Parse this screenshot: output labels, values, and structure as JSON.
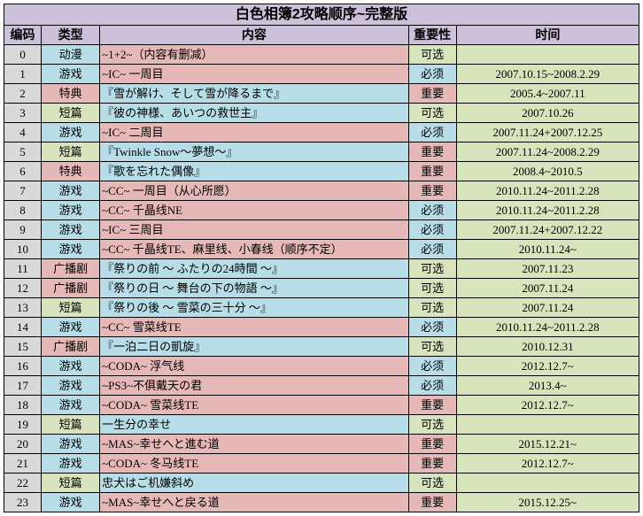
{
  "title": "白色相簿2攻略顺序~完整版",
  "headers": {
    "id": "编码",
    "type": "类型",
    "content": "内容",
    "imp": "重要性",
    "time": "时间"
  },
  "colors": {
    "header_bg": "#ccc0da",
    "id_bg": "#d9d9d9",
    "time_bg": "#d8e4bc",
    "blue": "#b7dee8",
    "pink": "#e6b8b7",
    "green": "#d8e4bc",
    "border": "#000000"
  },
  "columns": {
    "id_width": 42,
    "type_width": 66,
    "content_width": 348,
    "imp_width": 54,
    "time_width": 206
  },
  "font": {
    "title_size": 16,
    "header_size": 14,
    "cell_size": 13
  },
  "rows": [
    {
      "id": "0",
      "type": "动漫",
      "type_bg": "blue",
      "content": "~1+2~（内容有删减）",
      "content_bg": "pink",
      "imp": "可选",
      "imp_bg": "green",
      "time": ""
    },
    {
      "id": "1",
      "type": "游戏",
      "type_bg": "blue",
      "content": "~IC~ 一周目",
      "content_bg": "pink",
      "imp": "必须",
      "imp_bg": "blue",
      "time": "2007.10.15~2008.2.29"
    },
    {
      "id": "2",
      "type": "特典",
      "type_bg": "pink",
      "content": "『雪が解け、そして雪が降るまで』",
      "content_bg": "blue",
      "imp": "重要",
      "imp_bg": "pink",
      "time": "2005.4~2007.11"
    },
    {
      "id": "3",
      "type": "短篇",
      "type_bg": "green",
      "content": "『彼の神様、あいつの救世主』",
      "content_bg": "blue",
      "imp": "可选",
      "imp_bg": "green",
      "time": "2007.10.26"
    },
    {
      "id": "4",
      "type": "游戏",
      "type_bg": "blue",
      "content": "~IC~ 二周目",
      "content_bg": "pink",
      "imp": "必须",
      "imp_bg": "blue",
      "time": "2007.11.24+2007.12.25"
    },
    {
      "id": "5",
      "type": "短篇",
      "type_bg": "green",
      "content": "『Twinkle Snow～夢想～』",
      "content_bg": "blue",
      "imp": "重要",
      "imp_bg": "pink",
      "time": "2007.11.24~2008.2.29"
    },
    {
      "id": "6",
      "type": "特典",
      "type_bg": "pink",
      "content": "『歌を忘れた偶像』",
      "content_bg": "blue",
      "imp": "重要",
      "imp_bg": "pink",
      "time": "2008.4~2010.5"
    },
    {
      "id": "7",
      "type": "游戏",
      "type_bg": "blue",
      "content": "~CC~ 一周目（从心所愿）",
      "content_bg": "pink",
      "imp": "重要",
      "imp_bg": "pink",
      "time": "2010.11.24~2011.2.28"
    },
    {
      "id": "8",
      "type": "游戏",
      "type_bg": "blue",
      "content": "~CC~ 千晶线NE",
      "content_bg": "pink",
      "imp": "必须",
      "imp_bg": "blue",
      "time": "2010.11.24~2011.2.28"
    },
    {
      "id": "9",
      "type": "游戏",
      "type_bg": "blue",
      "content": "~IC~ 三周目",
      "content_bg": "pink",
      "imp": "必须",
      "imp_bg": "blue",
      "time": "2007.11.24+2007.12.22"
    },
    {
      "id": "10",
      "type": "游戏",
      "type_bg": "blue",
      "content": "~CC~ 千晶线TE、麻里线、小春线（顺序不定）",
      "content_bg": "pink",
      "imp": "必须",
      "imp_bg": "blue",
      "time": "2010.11.24~"
    },
    {
      "id": "11",
      "type": "广播剧",
      "type_bg": "pink",
      "content": "『祭りの前 ～ ふたりの24時間 ～』",
      "content_bg": "blue",
      "imp": "可选",
      "imp_bg": "green",
      "time": "2007.11.23"
    },
    {
      "id": "12",
      "type": "广播剧",
      "type_bg": "pink",
      "content": "『祭りの日 ～ 舞台の下の物語 ～』",
      "content_bg": "blue",
      "imp": "可选",
      "imp_bg": "green",
      "time": "2007.11.24"
    },
    {
      "id": "13",
      "type": "短篇",
      "type_bg": "green",
      "content": "『祭りの後 ～ 雪菜の三十分 ～』",
      "content_bg": "blue",
      "imp": "可选",
      "imp_bg": "green",
      "time": "2007.11.24"
    },
    {
      "id": "14",
      "type": "游戏",
      "type_bg": "blue",
      "content": "~CC~ 雪菜线TE",
      "content_bg": "pink",
      "imp": "必须",
      "imp_bg": "blue",
      "time": "2010.11.24~2011.2.28"
    },
    {
      "id": "15",
      "type": "广播剧",
      "type_bg": "pink",
      "content": "『一泊二日の凱旋』",
      "content_bg": "blue",
      "imp": "可选",
      "imp_bg": "green",
      "time": "2010.12.31"
    },
    {
      "id": "16",
      "type": "游戏",
      "type_bg": "blue",
      "content": "~CODA~ 浮气线",
      "content_bg": "pink",
      "imp": "必须",
      "imp_bg": "blue",
      "time": "2012.12.7~"
    },
    {
      "id": "17",
      "type": "游戏",
      "type_bg": "blue",
      "content": "~PS3~不俱戴天の君",
      "content_bg": "pink",
      "imp": "必须",
      "imp_bg": "blue",
      "time": "2013.4~"
    },
    {
      "id": "18",
      "type": "游戏",
      "type_bg": "blue",
      "content": "~CODA~ 雪菜线TE",
      "content_bg": "pink",
      "imp": "重要",
      "imp_bg": "pink",
      "time": "2012.12.7~"
    },
    {
      "id": "19",
      "type": "短篇",
      "type_bg": "green",
      "content": "一生分の幸せ",
      "content_bg": "blue",
      "imp": "可选",
      "imp_bg": "green",
      "time": ""
    },
    {
      "id": "20",
      "type": "游戏",
      "type_bg": "blue",
      "content": "~MAS~幸せへと進む道",
      "content_bg": "pink",
      "imp": "重要",
      "imp_bg": "pink",
      "time": "2015.12.21~"
    },
    {
      "id": "21",
      "type": "游戏",
      "type_bg": "blue",
      "content": "~CODA~ 冬马线TE",
      "content_bg": "pink",
      "imp": "重要",
      "imp_bg": "pink",
      "time": "2012.12.7~"
    },
    {
      "id": "22",
      "type": "短篇",
      "type_bg": "green",
      "content": "忠犬はご机嫌斜め",
      "content_bg": "blue",
      "imp": "可选",
      "imp_bg": "green",
      "time": ""
    },
    {
      "id": "23",
      "type": "游戏",
      "type_bg": "blue",
      "content": "~MAS~幸せへと戻る道",
      "content_bg": "pink",
      "imp": "重要",
      "imp_bg": "pink",
      "time": "2015.12.25~"
    }
  ]
}
